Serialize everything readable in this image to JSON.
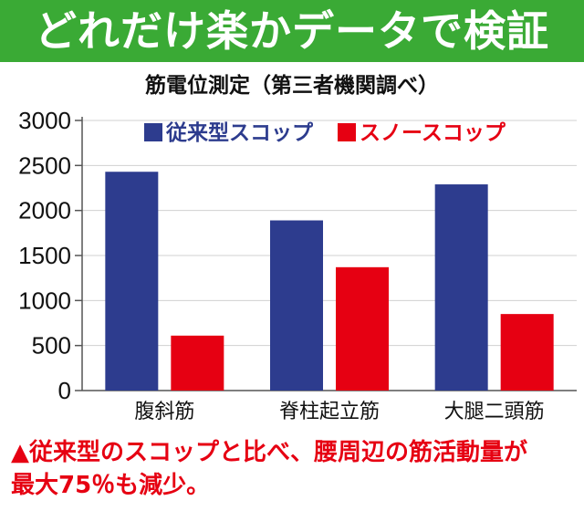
{
  "header": {
    "title": "どれだけ楽かデータで検証"
  },
  "chart_data": {
    "type": "bar",
    "title": "筋電位測定（第三者機関調べ）",
    "categories": [
      "腹斜筋",
      "脊柱起立筋",
      "大腿二頭筋"
    ],
    "series": [
      {
        "name": "従来型スコップ",
        "values": [
          2430,
          1890,
          2290
        ],
        "color": "#2d3c8e"
      },
      {
        "name": "スノースコップ",
        "values": [
          610,
          1370,
          850
        ],
        "color": "#e60012"
      }
    ],
    "yticks": [
      0,
      500,
      1000,
      1500,
      2000,
      2500,
      3000
    ],
    "ylim": [
      0,
      3000
    ],
    "xlabel": "",
    "ylabel": "",
    "grid": true,
    "legend_position": "top"
  },
  "caption": {
    "line1": "▲従来型のスコップと比べ、腰周辺の筋活動量が",
    "line2": "最大75％も減少。"
  }
}
